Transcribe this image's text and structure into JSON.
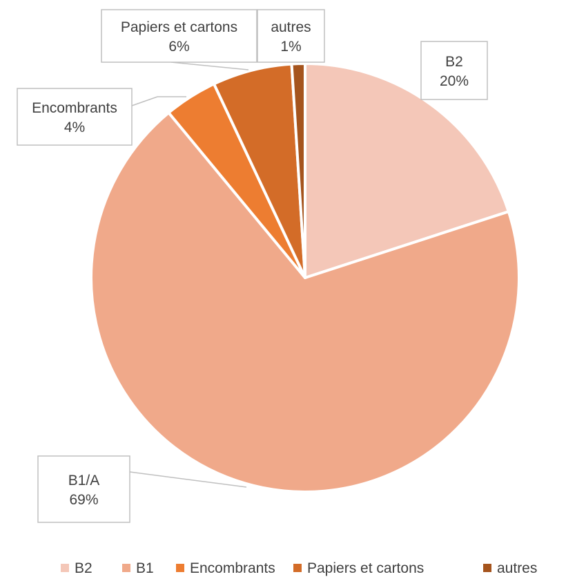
{
  "chart_data": {
    "type": "pie",
    "title": "",
    "slices": [
      {
        "label": "B2",
        "value": 20,
        "display": "20%",
        "color": "#F4C7B8"
      },
      {
        "label": "B1/A",
        "value": 69,
        "display": "69%",
        "color": "#F0A98A"
      },
      {
        "label": "Encombrants",
        "value": 4,
        "display": "4%",
        "color": "#ED7D31"
      },
      {
        "label": "Papiers et cartons",
        "value": 6,
        "display": "6%",
        "color": "#D36C28"
      },
      {
        "label": "autres",
        "value": 1,
        "display": "1%",
        "color": "#A5541D"
      }
    ],
    "legend": {
      "position": "bottom",
      "entries": [
        {
          "label": "B2",
          "color": "#F4C7B8"
        },
        {
          "label": "B1",
          "color": "#F0A98A"
        },
        {
          "label": "Encombrants",
          "color": "#ED7D31"
        },
        {
          "label": "Papiers et cartons",
          "color": "#D36C28"
        },
        {
          "label": "autres",
          "color": "#A5541D"
        }
      ]
    }
  }
}
